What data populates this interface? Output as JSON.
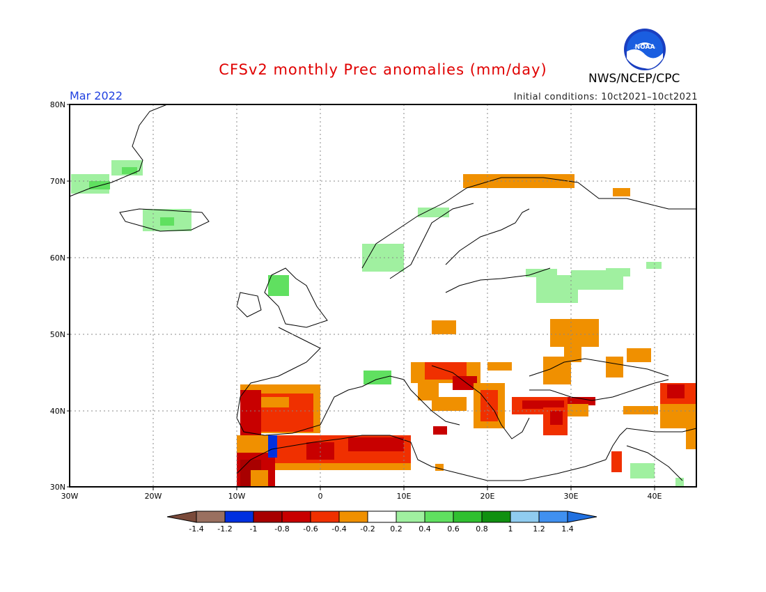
{
  "header": {
    "title": "CFSv2 monthly Prec anomalies (mm/day)",
    "month": "Mar 2022",
    "initial_conditions": "Initial conditions: 10ct2021–10ct2021",
    "agency": "NWS/NCEP/CPC",
    "logo_text": "NOAA"
  },
  "map": {
    "lat_labels": [
      "80N",
      "70N",
      "60N",
      "50N",
      "40N",
      "30N"
    ],
    "lon_labels": [
      "30W",
      "20W",
      "10W",
      "0",
      "10E",
      "20E",
      "30E",
      "40E"
    ]
  },
  "colorbar": {
    "labels": [
      "-1.4",
      "-1.2",
      "-1",
      "-0.8",
      "-0.6",
      "-0.4",
      "-0.2",
      "0.2",
      "0.4",
      "0.6",
      "0.8",
      "1",
      "1.2",
      "1.4"
    ],
    "colors": [
      "#7a4a3a",
      "#9a7060",
      "#0030e0",
      "#a80000",
      "#c80000",
      "#f03000",
      "#f09000",
      "#ffffff",
      "#a0f0a0",
      "#60e060",
      "#30c030",
      "#109010",
      "#90ccf0",
      "#4090f0",
      "#2070e0"
    ]
  }
}
